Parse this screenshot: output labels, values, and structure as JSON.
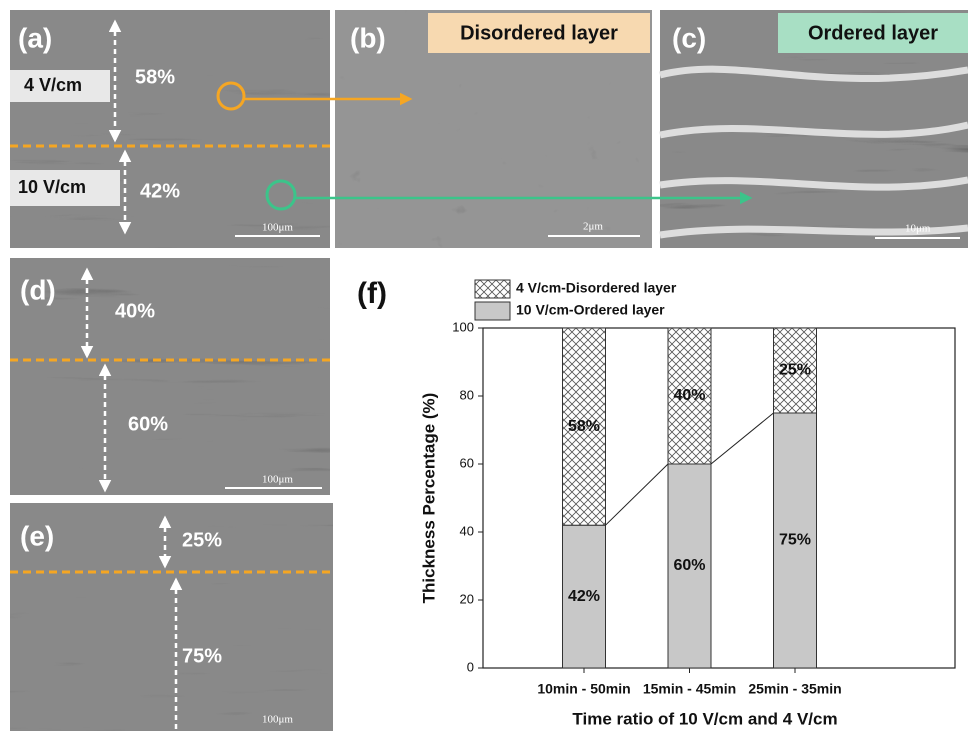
{
  "panels": [
    {
      "label": "(a)",
      "texts": [
        "4 V/cm",
        "58%",
        "10 V/cm",
        "42%",
        "100μm"
      ]
    },
    {
      "label": "(b)",
      "texts": [
        "Disordered layer",
        "2μm"
      ]
    },
    {
      "label": "(c)",
      "texts": [
        "Ordered layer",
        "10μm"
      ]
    },
    {
      "label": "(d)",
      "texts": [
        "40%",
        "60%",
        "100μm"
      ]
    },
    {
      "label": "(e)",
      "texts": [
        "25%",
        "75%",
        "100μm"
      ]
    }
  ],
  "chart_data": {
    "type": "stacked_bar",
    "panel_label": "(f)",
    "x_label": "Time ratio of 10 V/cm and 4 V/cm",
    "y_label": "Thickness Percentage (%)",
    "categories": [
      "10min - 50min",
      "15min - 45min",
      "25min - 35min"
    ],
    "series": [
      {
        "name": "4 V/cm-Disordered  layer",
        "color": "#ffffff",
        "hatch": "cross",
        "values": [
          58,
          40,
          25
        ],
        "value_labels": [
          "58%",
          "40%",
          "25%"
        ]
      },
      {
        "name": "10 V/cm-Ordered layer",
        "color": "#c8c8c8",
        "values": [
          42,
          60,
          75
        ],
        "value_labels": [
          "42%",
          "60%",
          "75%"
        ]
      }
    ],
    "ylim": [
      0,
      100
    ],
    "yticks": [
      0,
      20,
      40,
      60,
      80,
      100
    ],
    "legend": "top-left"
  }
}
